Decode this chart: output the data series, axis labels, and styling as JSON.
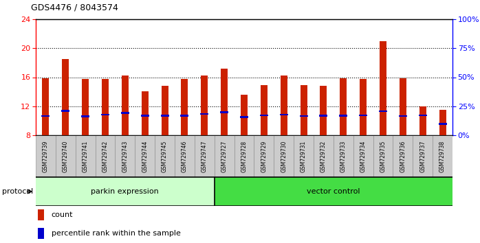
{
  "title": "GDS4476 / 8043574",
  "samples": [
    "GSM729739",
    "GSM729740",
    "GSM729741",
    "GSM729742",
    "GSM729743",
    "GSM729744",
    "GSM729745",
    "GSM729746",
    "GSM729747",
    "GSM729727",
    "GSM729728",
    "GSM729729",
    "GSM729730",
    "GSM729731",
    "GSM729732",
    "GSM729733",
    "GSM729734",
    "GSM729735",
    "GSM729736",
    "GSM729737",
    "GSM729738"
  ],
  "count_values": [
    15.9,
    18.5,
    15.8,
    15.8,
    16.2,
    14.1,
    14.8,
    15.8,
    16.2,
    17.2,
    13.6,
    14.9,
    16.2,
    14.9,
    14.8,
    15.9,
    15.8,
    21.0,
    15.9,
    12.0,
    11.5
  ],
  "percentile_values": [
    10.65,
    11.35,
    10.6,
    10.85,
    11.1,
    10.7,
    10.7,
    10.7,
    10.95,
    11.2,
    10.5,
    10.75,
    10.85,
    10.65,
    10.7,
    10.7,
    10.75,
    11.3,
    10.65,
    10.75,
    9.55
  ],
  "parkin_count": 9,
  "vector_count": 12,
  "bar_color": "#cc2200",
  "blue_color": "#0000cc",
  "ylim_left": [
    8,
    24
  ],
  "ylim_right": [
    0,
    100
  ],
  "yticks_left": [
    8,
    12,
    16,
    20,
    24
  ],
  "yticks_right": [
    0,
    25,
    50,
    75,
    100
  ],
  "parkin_label": "parkin expression",
  "vector_label": "vector control",
  "protocol_label": "protocol",
  "legend_count": "count",
  "legend_percentile": "percentile rank within the sample",
  "parkin_bg": "#ccffcc",
  "vector_bg": "#44dd44",
  "bar_width": 0.35,
  "ybase": 8
}
